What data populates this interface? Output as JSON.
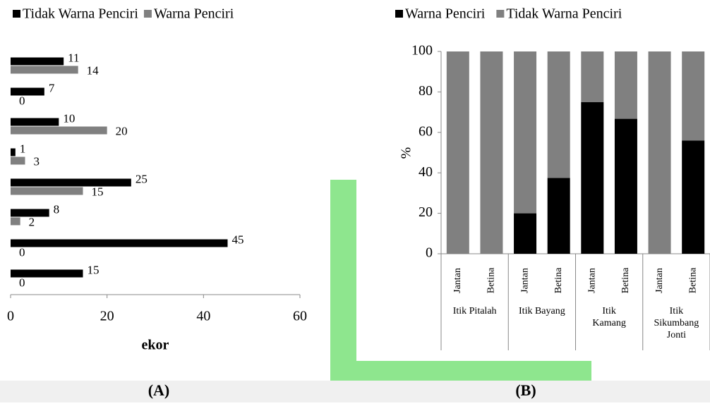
{
  "chart_data": [
    {
      "type": "hbar",
      "xlabel": "ekor",
      "xlim": [
        0,
        60
      ],
      "xticks": [
        0,
        20,
        40,
        60
      ],
      "series": [
        {
          "name": "Tidak Warna Penciri",
          "color": "#000000",
          "values": [
            11,
            7,
            10,
            1,
            25,
            8,
            45,
            15
          ]
        },
        {
          "name": "Warna Penciri",
          "color": "#808080",
          "values": [
            14,
            0,
            20,
            3,
            15,
            2,
            0,
            0
          ]
        }
      ]
    },
    {
      "type": "stacked",
      "ylabel": "%",
      "ylim": [
        0,
        100
      ],
      "yticks": [
        0,
        20,
        40,
        60,
        80,
        100
      ],
      "categories": [
        "Jantan",
        "Betina",
        "Jantan",
        "Betina",
        "Jantan",
        "Betina",
        "Jantan",
        "Betina"
      ],
      "groups": [
        [
          "Itik Pitalah"
        ],
        [
          "Itik Bayang"
        ],
        [
          "Itik",
          "Kamang"
        ],
        [
          "Itik",
          "Sikumbang",
          "Jonti"
        ]
      ],
      "series": [
        {
          "name": "Warna Penciri",
          "color": "#000000",
          "values": [
            0,
            0,
            20,
            37.5,
            75,
            66.7,
            0,
            56
          ]
        },
        {
          "name": "Tidak Warna Penciri",
          "color": "#808080",
          "values": [
            100,
            100,
            80,
            62.5,
            25,
            33.3,
            100,
            44
          ]
        }
      ]
    }
  ],
  "captions": [
    "(A)",
    "(B)"
  ]
}
